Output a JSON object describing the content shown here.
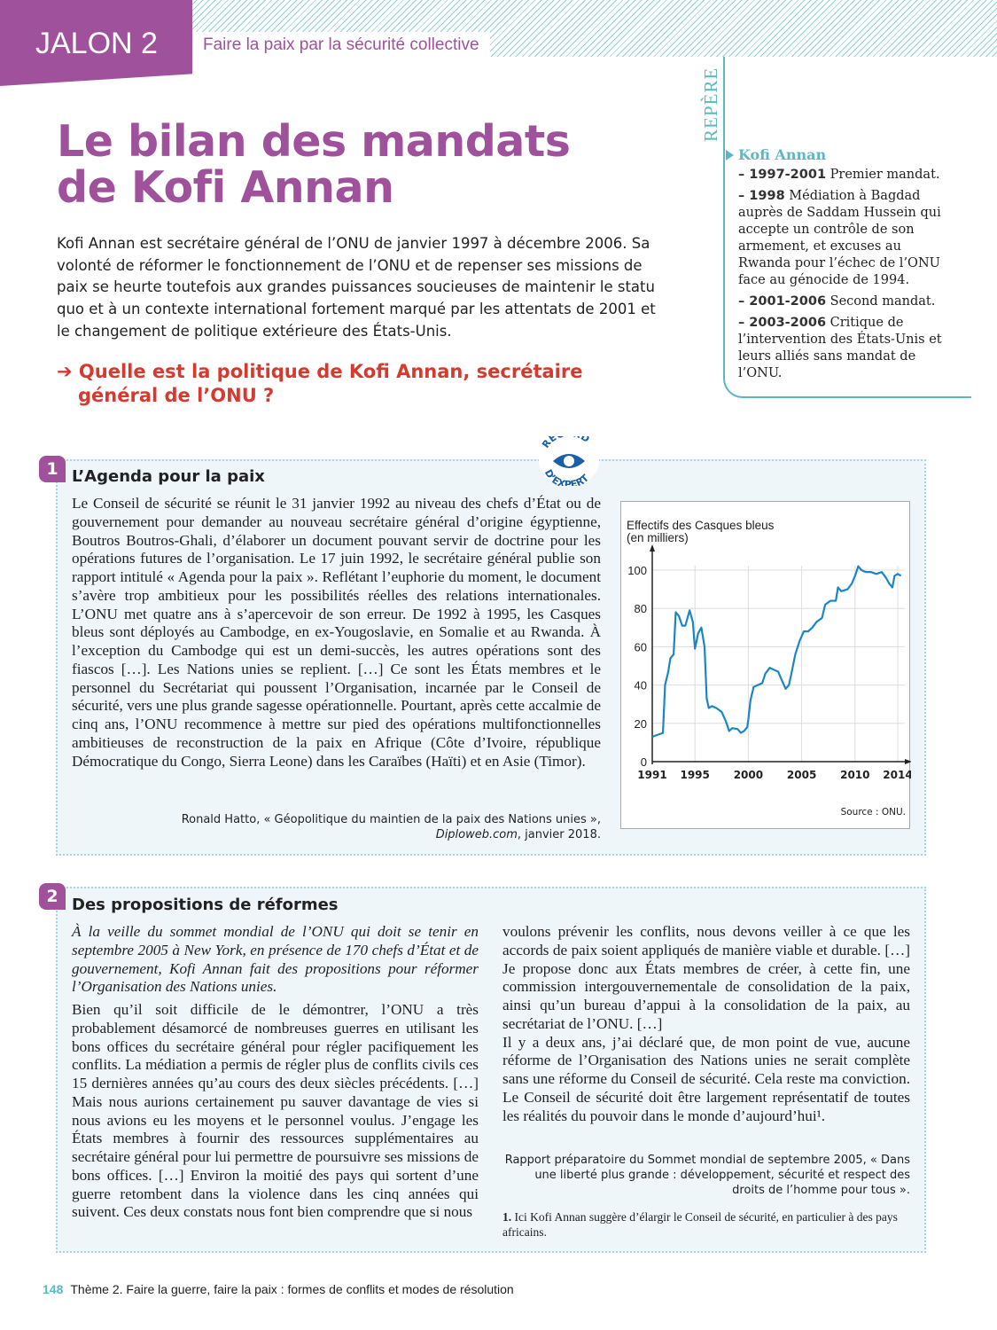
{
  "header": {
    "jalon": "JALON 2",
    "subtitle": "Faire la paix par la sécurité collective"
  },
  "title_line1": "Le bilan des mandats",
  "title_line2": "de Kofi Annan",
  "intro": "Kofi Annan est secrétaire général de l’ONU de janvier 1997 à décembre 2006. Sa volonté de réformer le fonctionnement de l’ONU et de repenser ses missions de paix se heurte toutefois aux grandes puissances soucieuses de maintenir le statu quo et à un contexte international fortement marqué par les attentats de 2001 et le changement de politique extérieure des États-Unis.",
  "question": "➔ Quelle est la politique de Kofi Annan, secrétaire général de l’ONU ?",
  "repere": {
    "label": "REPÈRE",
    "heading": "Kofi Annan",
    "items": [
      {
        "date": "– 1997-2001",
        "text": " Premier mandat."
      },
      {
        "date": "– 1998",
        "text": " Médiation à Bagdad auprès de Saddam Hussein qui accepte un contrôle de son armement, et excuses au Rwanda pour l’échec de l’ONU face au génocide de 1994."
      },
      {
        "date": "– 2001-2006",
        "text": " Second mandat."
      },
      {
        "date": "– 2003-2006",
        "text": " Critique de l’intervention des États-Unis et leurs alliés sans mandat de l’ONU."
      }
    ]
  },
  "doc1": {
    "number": "1",
    "title": "L’Agenda pour la paix",
    "badge": "REGARD D’EXPERT",
    "text": "Le Conseil de sécurité se réunit le 31 janvier 1992 au niveau des chefs d’État ou de gouvernement pour demander au nouveau secrétaire général d’origine égyptienne, Boutros Boutros-Ghali, d’élaborer un document pouvant servir de doctrine pour les opérations futures de l’organisation. Le 17 juin 1992, le secrétaire général publie son rapport intitulé « Agenda pour la paix ». Reflétant l’euphorie du moment, le document s’avère trop ambitieux pour les possibilités réelles des relations internationales. L’ONU met quatre ans à s’apercevoir de son erreur. De 1992 à 1995, les Casques bleus sont déployés au Cambodge, en ex-Yougoslavie, en Somalie et au Rwanda. À l’exception du Cambodge qui est un demi-succès, les autres opérations sont des fiascos […]. Les Nations unies se replient. […] Ce sont les États membres et le personnel du Secrétariat qui poussent l’Organisation, incarnée par le Conseil de sécurité, vers une plus grande sagesse opérationnelle. Pourtant, après cette accalmie de cinq ans, l’ONU recommence à mettre sur pied des opérations multifonctionnelles ambitieuses de reconstruction de la paix en Afrique (Côte d’Ivoire, république Démocratique du Congo, Sierra Leone) dans les Caraïbes (Haïti) et en Asie (Timor).",
    "source_line1": "Ronald Hatto, « Géopolitique du maintien de la paix des Nations unies »,",
    "source_site": "Diploweb.com",
    "source_date": ", janvier 2018."
  },
  "chart_data": {
    "type": "line",
    "title": "Effectifs des Casques bleus",
    "ylabel": "(en milliers)",
    "source": "Source : ONU.",
    "xlim": [
      1991,
      2014
    ],
    "ylim": [
      0,
      100
    ],
    "xticks": [
      1991,
      1995,
      2000,
      2005,
      2010,
      2014
    ],
    "yticks": [
      0,
      20,
      40,
      60,
      80,
      100
    ],
    "grid": true,
    "color": "#1a86c8",
    "points": [
      [
        1991.0,
        13
      ],
      [
        1991.5,
        14
      ],
      [
        1992.0,
        15
      ],
      [
        1992.2,
        40
      ],
      [
        1992.5,
        47
      ],
      [
        1992.7,
        54
      ],
      [
        1993.0,
        56
      ],
      [
        1993.2,
        78
      ],
      [
        1993.5,
        76
      ],
      [
        1993.8,
        71
      ],
      [
        1994.1,
        71
      ],
      [
        1994.5,
        79
      ],
      [
        1994.8,
        73
      ],
      [
        1995.0,
        59
      ],
      [
        1995.3,
        67
      ],
      [
        1995.6,
        70
      ],
      [
        1995.9,
        60
      ],
      [
        1996.1,
        33
      ],
      [
        1996.3,
        28
      ],
      [
        1996.6,
        29
      ],
      [
        1997.0,
        28
      ],
      [
        1997.5,
        26
      ],
      [
        1997.9,
        21
      ],
      [
        1998.2,
        16
      ],
      [
        1998.5,
        17.5
      ],
      [
        1999.0,
        17
      ],
      [
        1999.3,
        15
      ],
      [
        1999.6,
        16
      ],
      [
        1999.9,
        18
      ],
      [
        2000.0,
        22
      ],
      [
        2000.2,
        32
      ],
      [
        2000.5,
        39
      ],
      [
        2000.9,
        40
      ],
      [
        2001.3,
        41
      ],
      [
        2001.6,
        46
      ],
      [
        2002.0,
        49
      ],
      [
        2002.4,
        48
      ],
      [
        2002.8,
        47
      ],
      [
        2003.1,
        43
      ],
      [
        2003.5,
        38
      ],
      [
        2003.8,
        40
      ],
      [
        2004.0,
        45
      ],
      [
        2004.4,
        56
      ],
      [
        2004.8,
        63
      ],
      [
        2005.2,
        68
      ],
      [
        2005.6,
        68
      ],
      [
        2006.0,
        70
      ],
      [
        2006.4,
        73
      ],
      [
        2006.9,
        75
      ],
      [
        2007.2,
        82
      ],
      [
        2007.7,
        84
      ],
      [
        2008.2,
        84
      ],
      [
        2008.4,
        91
      ],
      [
        2008.7,
        89
      ],
      [
        2009.3,
        90
      ],
      [
        2009.7,
        93
      ],
      [
        2010.0,
        97
      ],
      [
        2010.3,
        102
      ],
      [
        2010.6,
        100
      ],
      [
        2011.0,
        99
      ],
      [
        2011.5,
        99
      ],
      [
        2012.0,
        98
      ],
      [
        2012.5,
        99
      ],
      [
        2012.9,
        96
      ],
      [
        2013.2,
        93
      ],
      [
        2013.5,
        91
      ],
      [
        2013.7,
        97
      ],
      [
        2014.0,
        98
      ],
      [
        2014.3,
        97
      ]
    ]
  },
  "doc2": {
    "number": "2",
    "title": "Des propositions de réformes",
    "intro": "À la veille du sommet mondial de l’ONU qui doit se tenir en septembre 2005 à New York, en présence de 170 chefs d’État et de gouvernement, Kofi Annan fait des propositions pour réformer l’Organisation des Nations unies.",
    "left": "Bien qu’il soit difficile de le démontrer, l’ONU a très probablement désamorcé de nombreuses guerres en utilisant les bons offices du secrétaire général pour régler pacifiquement les conflits. La médiation a permis de régler plus de conflits civils ces 15 dernières années qu’au cours des deux siècles précédents. […] Mais nous aurions certainement pu sauver davantage de vies si nous avions eu les moyens et le personnel voulus. J’engage les États membres à fournir des ressources supplémentaires au secrétaire général pour lui permettre de poursuivre ses missions de bons offices. […] Environ la moitié des pays qui sortent d’une guerre retombent dans la violence dans les cinq années qui suivent. Ces deux constats nous font bien comprendre que si nous",
    "right1": "voulons prévenir les conflits, nous devons veiller à ce que les accords de paix soient appliqués de manière viable et durable. […] Je propose donc aux États membres de créer, à cette fin, une commission intergouvernementale de consolidation de la paix, ainsi qu’un bureau d’appui à la consolidation de la paix, au secrétariat de l’ONU. […]",
    "right2": "Il y a deux ans, j’ai déclaré que, de mon point de vue, aucune réforme de l’Organisation des Nations unies ne serait complète sans une réforme du Conseil de sécurité. Cela reste ma conviction. Le Conseil de sécurité doit être largement représentatif de toutes les réalités du pouvoir dans le monde d’aujourd’hui¹.",
    "source": "Rapport préparatoire du Sommet mondial de septembre 2005, « Dans une liberté plus grande : développement, sécurité et respect des droits de l’homme pour tous ».",
    "footnote_num": "1.",
    "footnote": " Ici Kofi Annan suggère d’élargir le Conseil de sécurité, en particulier à des pays africains."
  },
  "footer": {
    "page": "148",
    "text": "Thème 2. Faire la guerre, faire la paix : formes de conflits et modes de résolution"
  }
}
